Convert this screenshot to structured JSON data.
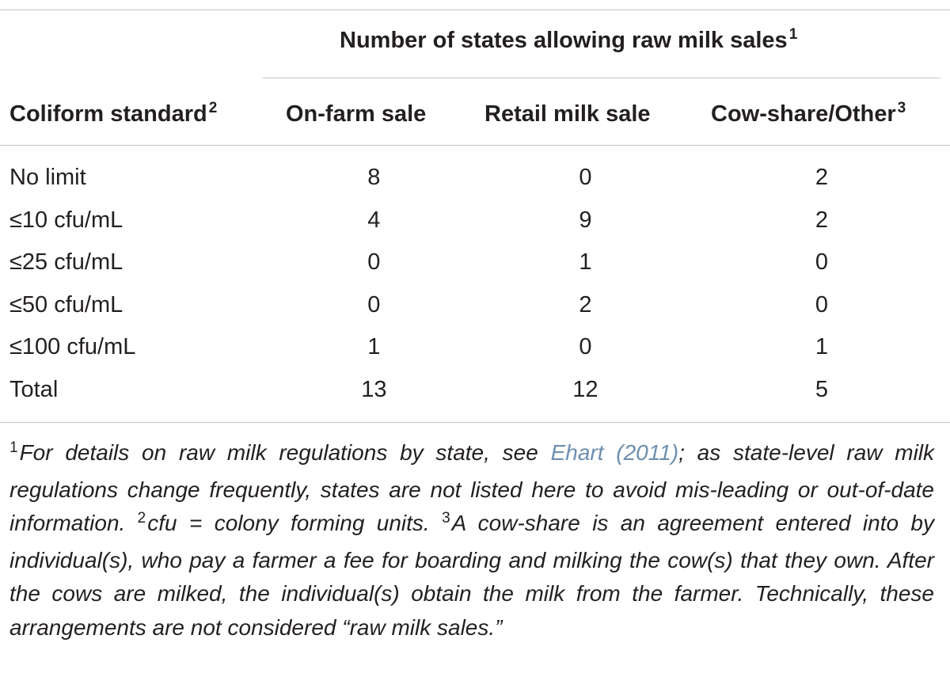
{
  "table": {
    "spanner": "Number of states allowing raw milk sales",
    "spanner_sup": "1",
    "columns": [
      {
        "label": "Coliform standard",
        "sup": "2"
      },
      {
        "label": "On-farm sale",
        "sup": ""
      },
      {
        "label": "Retail milk sale",
        "sup": ""
      },
      {
        "label": "Cow-share/Other",
        "sup": "3"
      }
    ],
    "rows": [
      [
        "No limit",
        "8",
        "0",
        "2"
      ],
      [
        "≤10 cfu/mL",
        "4",
        "9",
        "2"
      ],
      [
        "≤25 cfu/mL",
        "0",
        "1",
        "0"
      ],
      [
        "≤50 cfu/mL",
        "0",
        "2",
        "0"
      ],
      [
        "≤100 cfu/mL",
        "1",
        "0",
        "1"
      ],
      [
        "Total",
        "13",
        "12",
        "5"
      ]
    ]
  },
  "footnote": {
    "m1": "1",
    "p1": "For details on raw milk regulations by state, see ",
    "cite": "Ehart (2011)",
    "p2": "; as state-level raw milk regulations change frequently, states are not listed here to avoid mis-leading or out-of-date information. ",
    "m2": "2",
    "p3": "cfu = colony forming units. ",
    "m3": "3",
    "p4": "A cow-share is an agreement entered into by individual(s), who pay a farmer a fee for boarding and milking the cow(s) that they own. After the cows are milked, the individual(s) obtain the milk from the farmer. Technically, these arrangements are not considered “raw milk sales.”"
  }
}
